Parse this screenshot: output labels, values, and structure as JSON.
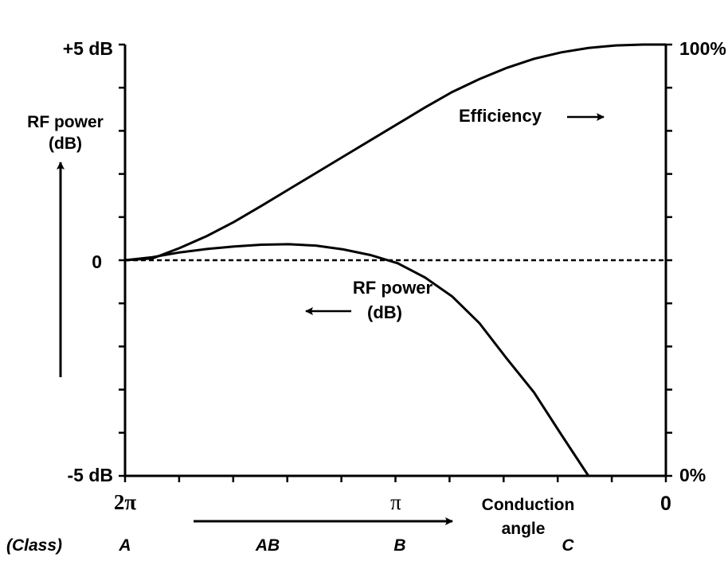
{
  "chart_data": {
    "type": "line",
    "x_axis": {
      "direction": "decreasing",
      "range": [
        6.2832,
        0
      ],
      "tick_count_minor": 11,
      "labels": [
        {
          "text": "2π",
          "value": 6.2832
        },
        {
          "text": "π",
          "value": 3.1416
        },
        {
          "text": "0",
          "value": 0
        }
      ],
      "title": [
        "Conduction",
        "angle"
      ]
    },
    "y_left": {
      "range": [
        -5,
        5
      ],
      "unit": "dB",
      "labels": [
        {
          "text": "+5 dB",
          "value": 5
        },
        {
          "text": "0",
          "value": 0
        },
        {
          "text": "-5 dB",
          "value": -5
        }
      ],
      "title": [
        "RF power",
        "(dB)"
      ]
    },
    "y_right": {
      "range": [
        0,
        100
      ],
      "unit": "%",
      "labels": [
        {
          "text": "100%",
          "value": 100
        },
        {
          "text": "0%",
          "value": 0
        }
      ]
    },
    "series": [
      {
        "name": "Efficiency",
        "axis": "right",
        "x": [
          6.2832,
          5.966,
          5.65,
          5.333,
          5.016,
          4.699,
          4.383,
          4.066,
          3.75,
          3.433,
          3.116,
          2.799,
          2.483,
          2.166,
          1.849,
          1.533,
          1.216,
          0.899,
          0.583,
          0.266,
          0
        ],
        "y": [
          50,
          50.4,
          52.8,
          55.6,
          58.9,
          62.6,
          66.4,
          70.2,
          74,
          77.8,
          81.6,
          85.4,
          89,
          92,
          94.6,
          96.7,
          98.2,
          99.2,
          99.8,
          100,
          100
        ]
      },
      {
        "name": "RF power (dB)",
        "axis": "left",
        "x": [
          6.2832,
          5.966,
          5.65,
          5.333,
          5.016,
          4.699,
          4.383,
          4.066,
          3.75,
          3.433,
          3.116,
          2.799,
          2.483,
          2.166,
          1.849,
          1.533,
          1.216,
          0.899
        ],
        "y": [
          0,
          0.07,
          0.18,
          0.26,
          0.32,
          0.36,
          0.37,
          0.34,
          0.25,
          0.12,
          -0.07,
          -0.4,
          -0.84,
          -1.46,
          -2.28,
          -3.06,
          -4.04,
          -5
        ]
      },
      {
        "name": "",
        "style": "dashed",
        "axis": "left",
        "x": [
          6.2832,
          0
        ],
        "y": [
          0,
          0
        ]
      }
    ],
    "annotations": [
      {
        "text": "Efficiency",
        "arrow": "right"
      },
      {
        "text_lines": [
          "RF power",
          "(dB)"
        ],
        "arrow": "left"
      }
    ],
    "classes": {
      "heading": "(Class)",
      "items": [
        "A",
        "AB",
        "B",
        "C"
      ]
    }
  }
}
